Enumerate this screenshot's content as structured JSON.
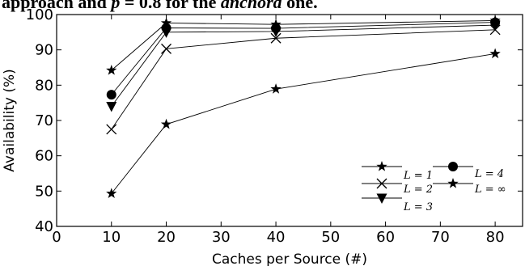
{
  "caption": {
    "prefix": "approach and ",
    "symbol": "p",
    "middle": " = 0.8 for the ",
    "emph": "anchord",
    "suffix": " one."
  },
  "chart_data": {
    "type": "line",
    "xlabel": "Caches per Source (#)",
    "ylabel": "Availability (%)",
    "xlim": [
      0,
      85
    ],
    "ylim": [
      40,
      100
    ],
    "x_ticks": [
      0,
      10,
      20,
      30,
      40,
      50,
      60,
      70,
      80
    ],
    "y_ticks": [
      40,
      50,
      60,
      70,
      80,
      90,
      100
    ],
    "grid": false,
    "legend_position": "bottom-right",
    "x": [
      10,
      20,
      40,
      80
    ],
    "series": [
      {
        "name": "L = 1",
        "marker": "star",
        "values": [
          84.2,
          97.6,
          97.2,
          98.3
        ]
      },
      {
        "name": "L = 2",
        "marker": "x",
        "values": [
          67.5,
          90.3,
          93.3,
          95.7
        ]
      },
      {
        "name": "L = 3",
        "marker": "triangle-down",
        "values": [
          74.0,
          95.0,
          95.2,
          97.0
        ]
      },
      {
        "name": "L = 4",
        "marker": "circle",
        "values": [
          77.3,
          96.2,
          96.1,
          97.8
        ]
      },
      {
        "name": "L = ∞",
        "marker": "star",
        "values": [
          49.3,
          68.9,
          78.9,
          88.9
        ]
      }
    ]
  }
}
